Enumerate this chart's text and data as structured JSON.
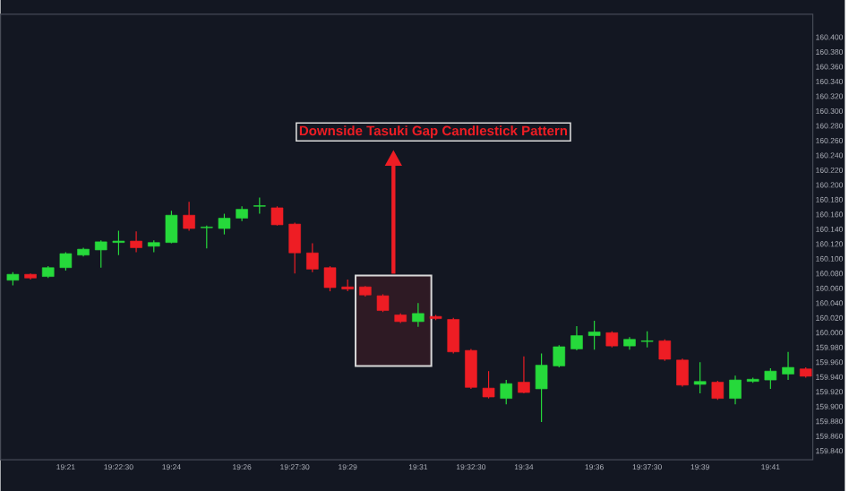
{
  "chart_data": {
    "type": "candlestick",
    "annotations": [
      "Downside Tasuki Gap Candlestick Pattern"
    ],
    "x": [
      19.325,
      19.33333,
      19.34167,
      19.35,
      19.35833,
      19.36667,
      19.375,
      19.38333,
      19.39167,
      19.4,
      19.40833,
      19.41667,
      19.425,
      19.43333,
      19.44167,
      19.45,
      19.45833,
      19.46667,
      19.475,
      19.48333,
      19.49167,
      19.5,
      19.50833,
      19.51667,
      19.525,
      19.53333,
      19.54167,
      19.55,
      19.55833,
      19.56667,
      19.575,
      19.58333,
      19.59167,
      19.6,
      19.60833,
      19.61667,
      19.625,
      19.63333,
      19.64167,
      19.65,
      19.65833,
      19.66667,
      19.675,
      19.68333,
      19.69167,
      19.7
    ],
    "ohlc": [
      [
        160.071,
        160.082,
        160.064,
        160.079
      ],
      [
        160.079,
        160.08,
        160.072,
        160.074
      ],
      [
        160.076,
        160.09,
        160.074,
        160.088
      ],
      [
        160.088,
        160.109,
        160.084,
        160.107
      ],
      [
        160.105,
        160.115,
        160.103,
        160.113
      ],
      [
        160.112,
        160.125,
        160.088,
        160.123
      ],
      [
        160.122,
        160.138,
        160.105,
        160.124
      ],
      [
        160.124,
        160.137,
        160.109,
        160.115
      ],
      [
        160.117,
        160.125,
        160.109,
        160.122
      ],
      [
        160.122,
        160.165,
        160.121,
        160.159
      ],
      [
        160.159,
        160.177,
        160.138,
        160.141
      ],
      [
        160.142,
        160.145,
        160.114,
        160.143
      ],
      [
        160.141,
        160.161,
        160.133,
        160.155
      ],
      [
        160.155,
        160.171,
        160.151,
        160.167
      ],
      [
        160.171,
        160.183,
        160.161,
        160.172
      ],
      [
        160.169,
        160.171,
        160.145,
        160.146
      ],
      [
        160.147,
        160.149,
        160.08,
        160.108
      ],
      [
        160.108,
        160.121,
        160.082,
        160.086
      ],
      [
        160.088,
        160.09,
        160.056,
        160.061
      ],
      [
        160.062,
        160.072,
        160.056,
        160.059
      ],
      [
        160.062,
        160.063,
        160.049,
        160.051
      ],
      [
        160.05,
        160.052,
        160.028,
        160.03
      ],
      [
        160.024,
        160.026,
        160.013,
        160.015
      ],
      [
        160.015,
        160.04,
        160.008,
        160.026
      ],
      [
        160.022,
        160.024,
        160.017,
        160.019
      ],
      [
        160.018,
        160.02,
        159.972,
        159.974
      ],
      [
        159.976,
        159.978,
        159.924,
        159.926
      ],
      [
        159.925,
        159.948,
        159.911,
        159.913
      ],
      [
        159.911,
        159.936,
        159.903,
        159.931
      ],
      [
        159.933,
        159.968,
        159.918,
        159.919
      ],
      [
        159.924,
        159.972,
        159.879,
        159.956
      ],
      [
        159.955,
        159.983,
        159.953,
        159.981
      ],
      [
        159.978,
        160.009,
        159.976,
        159.996
      ],
      [
        159.996,
        160.016,
        159.977,
        160.001
      ],
      [
        160.0,
        160.002,
        159.98,
        159.982
      ],
      [
        159.982,
        159.994,
        159.977,
        159.991
      ],
      [
        159.988,
        160.002,
        159.98,
        159.989
      ],
      [
        159.989,
        159.991,
        159.962,
        159.964
      ],
      [
        159.963,
        159.965,
        159.927,
        159.929
      ],
      [
        159.93,
        159.96,
        159.918,
        159.934
      ],
      [
        159.933,
        159.935,
        159.909,
        159.911
      ],
      [
        159.911,
        159.942,
        159.903,
        159.936
      ],
      [
        159.934,
        159.939,
        159.932,
        159.937
      ],
      [
        159.936,
        159.952,
        159.924,
        159.948
      ],
      [
        159.944,
        159.974,
        159.936,
        159.953
      ],
      [
        159.951,
        159.953,
        159.939,
        159.941
      ]
    ],
    "colors": [
      "#26d93b",
      "#ee1d24",
      "#26d93b",
      "#26d93b",
      "#26d93b",
      "#26d93b",
      "#26d93b",
      "#ee1d24",
      "#26d93b",
      "#26d93b",
      "#ee1d24",
      "#26d93b",
      "#26d93b",
      "#26d93b",
      "#26d93b",
      "#ee1d24",
      "#ee1d24",
      "#ee1d24",
      "#ee1d24",
      "#ee1d24",
      "#ee1d24",
      "#ee1d24",
      "#ee1d24",
      "#26d93b",
      "#ee1d24",
      "#ee1d24",
      "#ee1d24",
      "#ee1d24",
      "#26d93b",
      "#ee1d24",
      "#26d93b",
      "#26d93b",
      "#26d93b",
      "#26d93b",
      "#ee1d24",
      "#26d93b",
      "#26d93b",
      "#ee1d24",
      "#ee1d24",
      "#26d93b",
      "#ee1d24",
      "#26d93b",
      "#26d93b",
      "#26d93b",
      "#26d93b",
      "#ee1d24"
    ],
    "xlim": [
      19.31917,
      19.70333
    ],
    "ylim": [
      159.828,
      160.431
    ],
    "xticks": [
      {
        "value": 19.35,
        "label": "19:21"
      },
      {
        "value": 19.375,
        "label": "19:22:30"
      },
      {
        "value": 19.4,
        "label": "19:24"
      },
      {
        "value": 19.43333,
        "label": "19:26"
      },
      {
        "value": 19.45833,
        "label": "19:27:30"
      },
      {
        "value": 19.48333,
        "label": "19:29"
      },
      {
        "value": 19.51667,
        "label": "19:31"
      },
      {
        "value": 19.54167,
        "label": "19:32:30"
      },
      {
        "value": 19.56667,
        "label": "19:34"
      },
      {
        "value": 19.6,
        "label": "19:36"
      },
      {
        "value": 19.625,
        "label": "19:37:30"
      },
      {
        "value": 19.65,
        "label": "19:39"
      },
      {
        "value": 19.68333,
        "label": "19:41"
      }
    ],
    "yticks": [
      {
        "value": 160.4,
        "label": "160.400"
      },
      {
        "value": 160.38,
        "label": "160.380"
      },
      {
        "value": 160.36,
        "label": "160.360"
      },
      {
        "value": 160.34,
        "label": "160.340"
      },
      {
        "value": 160.32,
        "label": "160.320"
      },
      {
        "value": 160.3,
        "label": "160.300"
      },
      {
        "value": 160.28,
        "label": "160.280"
      },
      {
        "value": 160.26,
        "label": "160.260"
      },
      {
        "value": 160.24,
        "label": "160.240"
      },
      {
        "value": 160.22,
        "label": "160.220"
      },
      {
        "value": 160.2,
        "label": "160.200"
      },
      {
        "value": 160.18,
        "label": "160.180"
      },
      {
        "value": 160.16,
        "label": "160.160"
      },
      {
        "value": 160.14,
        "label": "160.140"
      },
      {
        "value": 160.12,
        "label": "160.120"
      },
      {
        "value": 160.1,
        "label": "160.100"
      },
      {
        "value": 160.08,
        "label": "160.080"
      },
      {
        "value": 160.06,
        "label": "160.060"
      },
      {
        "value": 160.04,
        "label": "160.040"
      },
      {
        "value": 160.02,
        "label": "160.020"
      },
      {
        "value": 160.0,
        "label": "160.000"
      },
      {
        "value": 159.98,
        "label": "159.980"
      },
      {
        "value": 159.96,
        "label": "159.960"
      },
      {
        "value": 159.94,
        "label": "159.940"
      },
      {
        "value": 159.92,
        "label": "159.920"
      },
      {
        "value": 159.9,
        "label": "159.900"
      },
      {
        "value": 159.88,
        "label": "159.880"
      },
      {
        "value": 159.86,
        "label": "159.860"
      },
      {
        "value": 159.84,
        "label": "159.840"
      }
    ]
  }
}
